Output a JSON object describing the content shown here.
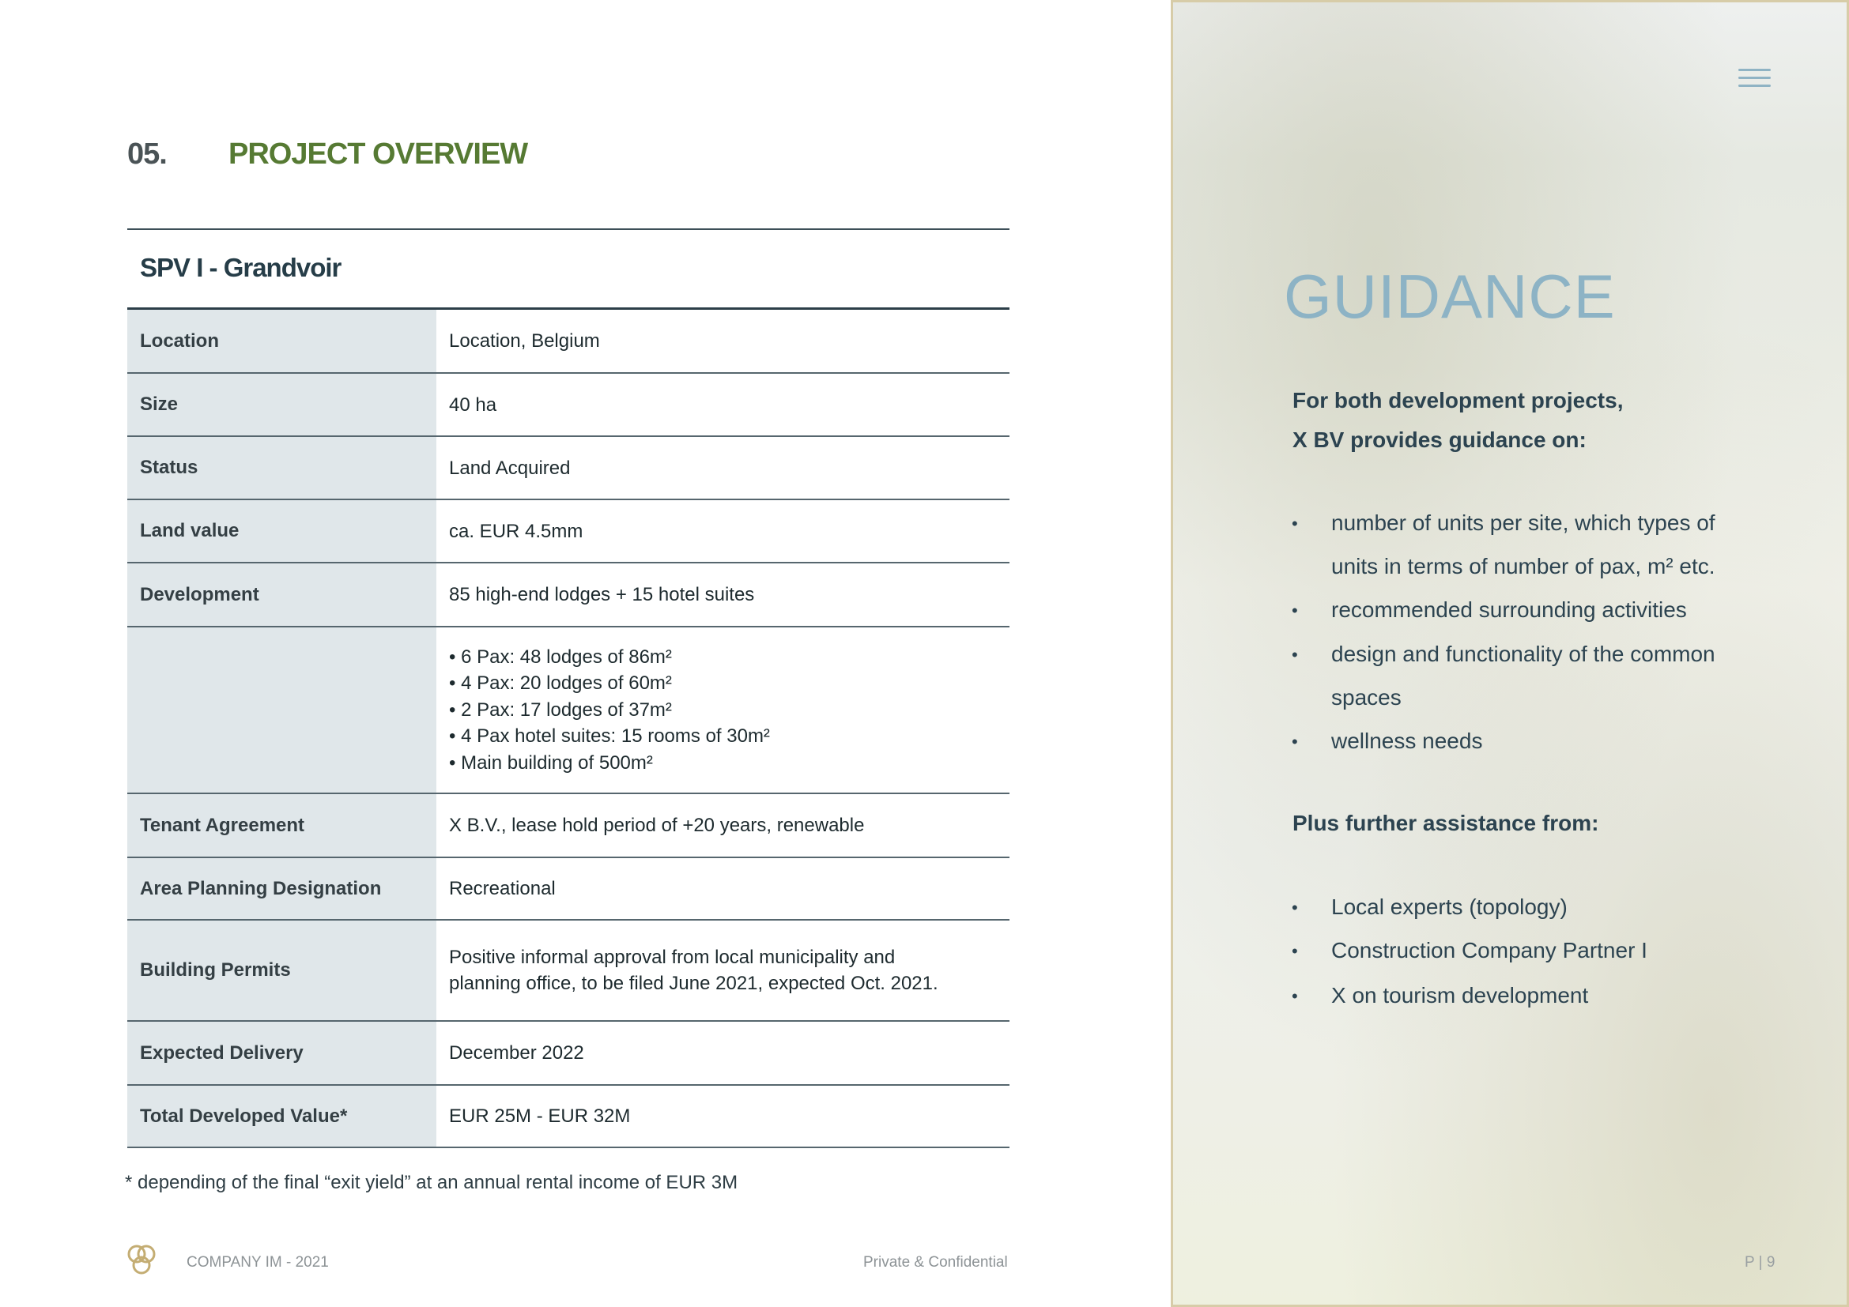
{
  "section": {
    "number": "05.",
    "title": "PROJECT OVERVIEW"
  },
  "spv_title": "SPV I - Grandvoir",
  "table": [
    {
      "label": "Location",
      "value": [
        "Location, Belgium"
      ]
    },
    {
      "label": "Size",
      "value": [
        "40 ha"
      ]
    },
    {
      "label": "Status",
      "value": [
        "Land Acquired"
      ]
    },
    {
      "label": "Land value",
      "value": [
        "ca. EUR 4.5mm"
      ]
    },
    {
      "label": "Development",
      "value": [
        "85 high-end lodges + 15 hotel suites"
      ]
    },
    {
      "label": "",
      "value": [
        "• 6 Pax: 48 lodges of 86m²",
        "• 4 Pax: 20 lodges of 60m²",
        "• 2 Pax: 17 lodges of 37m²",
        "• 4 Pax hotel suites: 15 rooms of 30m²",
        "• Main building of 500m²"
      ]
    },
    {
      "label": "Tenant Agreement",
      "value": [
        "X B.V., lease hold period of +20 years, renewable"
      ]
    },
    {
      "label": "Area Planning Designation",
      "value": [
        "Recreational"
      ]
    },
    {
      "label": "Building Permits",
      "value": [
        "Positive informal approval from local municipality and",
        "planning office, to be filed June 2021, expected Oct. 2021."
      ]
    },
    {
      "label": "Expected Delivery",
      "value": [
        "December 2022"
      ]
    },
    {
      "label": "Total Developed Value*",
      "value": [
        "EUR 25M - EUR 32M"
      ]
    }
  ],
  "footnote": "* depending of the final “exit yield” at an annual rental income of EUR 3M",
  "footer": {
    "company": "COMPANY IM - 2021",
    "confidential": "Private & Confidential",
    "page": "P | 9"
  },
  "guidance": {
    "title": "GUIDANCE",
    "intro": [
      "For both development projects,",
      "X BV provides guidance on:"
    ],
    "bullets": [
      "number of units per site, which types of",
      "units in terms of number of pax, m² etc.",
      "recommended surrounding activities",
      "design and functionality of the common",
      "spaces",
      "wellness needs"
    ],
    "bullet_marks": [
      true,
      false,
      true,
      true,
      false,
      true
    ],
    "further_title": "Plus further assistance from:",
    "further_bullets": [
      "Local experts (topology)",
      "Construction Company Partner I",
      "X on tourism development"
    ]
  },
  "colors": {
    "accent_green": "#567a33",
    "guidance_blue": "#8db3c5",
    "panel_border": "#d7cca8",
    "label_bg": "#e0e7ea"
  }
}
